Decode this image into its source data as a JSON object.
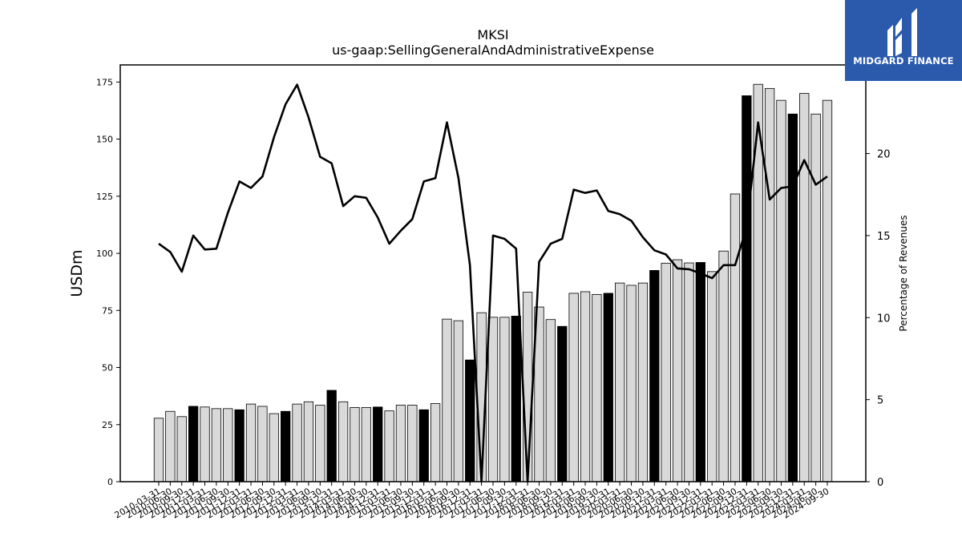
{
  "chart_data": {
    "type": "bar+line",
    "title": "MKSI",
    "subtitle": "us-gaap:SellingGeneralAndAdministrativeExpense",
    "ylabel": "USDm",
    "y2label": "Percentage of Revenues",
    "ylim": [
      0,
      182.5
    ],
    "y2lim": [
      0,
      25.4
    ],
    "yticks": [
      0,
      25,
      50,
      75,
      100,
      125,
      150,
      175
    ],
    "y2ticks": [
      0,
      5,
      10,
      15,
      20
    ],
    "categories": [
      "2010-03-31",
      "2010-06-30",
      "2010-09-30",
      "2010-12-31",
      "2011-03-31",
      "2011-06-30",
      "2011-09-30",
      "2011-12-31",
      "2012-03-31",
      "2012-06-30",
      "2012-09-30",
      "2012-12-31",
      "2013-03-31",
      "2013-06-30",
      "2013-09-30",
      "2013-12-31",
      "2014-03-31",
      "2014-06-30",
      "2014-09-30",
      "2014-12-31",
      "2015-03-31",
      "2015-06-30",
      "2015-09-30",
      "2015-12-31",
      "2016-03-31",
      "2016-06-30",
      "2016-09-30",
      "2016-12-31",
      "2017-03-31",
      "2017-06-30",
      "2017-09-30",
      "2017-12-31",
      "2018-03-31",
      "2018-06-30",
      "2018-09-30",
      "2018-12-31",
      "2019-03-31",
      "2019-06-30",
      "2019-09-30",
      "2019-12-31",
      "2020-03-31",
      "2020-06-30",
      "2020-09-30",
      "2020-12-31",
      "2021-03-31",
      "2021-06-30",
      "2021-09-30",
      "2021-12-31",
      "2022-03-31",
      "2022-06-30",
      "2022-09-30",
      "2022-12-31",
      "2023-03-31",
      "2023-06-30",
      "2023-09-30",
      "2023-12-31",
      "2024-03-31",
      "2024-06-30",
      "2024-09-30"
    ],
    "bar_values": [
      27.8,
      30.8,
      28.5,
      33.0,
      32.7,
      32.0,
      32.0,
      31.5,
      34.0,
      33.0,
      29.8,
      30.8,
      34.0,
      35.0,
      33.5,
      40.0,
      35.0,
      32.5,
      32.5,
      32.7,
      31.0,
      33.5,
      33.5,
      31.5,
      34.2,
      71.2,
      70.5,
      53.3,
      74.0,
      72.0,
      72.0,
      72.5,
      83.0,
      76.5,
      71.0,
      68.0,
      82.5,
      83.2,
      82.0,
      82.5,
      87.0,
      86.0,
      87.0,
      92.5,
      95.7,
      97.2,
      95.8,
      96.0,
      92.0,
      101.0,
      126.0,
      169.0,
      174.0,
      172.2,
      167.0,
      161.0,
      170.0,
      161.0,
      167.0
    ],
    "highlight_indices": [
      3,
      7,
      11,
      15,
      19,
      23,
      27,
      31,
      35,
      39,
      43,
      47,
      51,
      55
    ],
    "pct_values": [
      14.5,
      14.0,
      12.8,
      15.0,
      14.15,
      14.2,
      16.4,
      18.3,
      17.9,
      18.6,
      21.0,
      23.0,
      24.2,
      22.2,
      19.8,
      19.4,
      16.8,
      17.4,
      17.3,
      16.1,
      14.5,
      15.3,
      16.0,
      18.3,
      18.5,
      21.9,
      18.5,
      13.2,
      0.0,
      15.0,
      14.8,
      14.2,
      0.0,
      13.4,
      14.5,
      14.8,
      17.8,
      17.6,
      17.75,
      16.5,
      16.3,
      15.9,
      14.9,
      14.1,
      13.85,
      13.0,
      12.95,
      12.7,
      12.4,
      13.2,
      13.2,
      15.5,
      21.9,
      17.2,
      17.9,
      18.0,
      19.6,
      18.1,
      18.6
    ],
    "colors": {
      "bar": "#d9d9d9",
      "bar_highlight": "#000000",
      "bar_edge": "#000000",
      "line": "#000000"
    },
    "grid": false,
    "legend": "none"
  },
  "logo": {
    "text": "MIDGARD FINANCE",
    "color": "#2b5aad"
  }
}
